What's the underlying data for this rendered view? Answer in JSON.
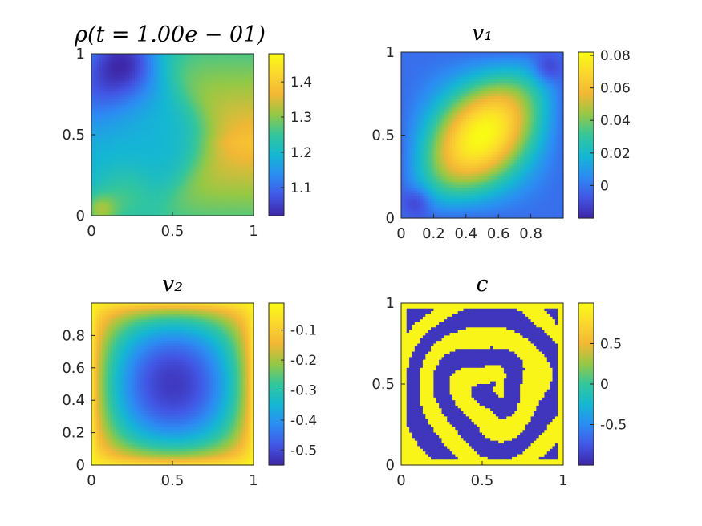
{
  "figure": {
    "colormap_stops": [
      "#3e26a8",
      "#4257e5",
      "#2c8cf3",
      "#14b7d3",
      "#34c69b",
      "#95c845",
      "#f3b735",
      "#fbd72f",
      "#f9fb14"
    ]
  },
  "chart_data": [
    {
      "type": "heatmap",
      "title": "ρ(t = 1.00e − 01)",
      "field": "density",
      "xlim": [
        0,
        1
      ],
      "ylim": [
        0,
        1
      ],
      "xticks": [
        0,
        0.5,
        1
      ],
      "xtick_labels": [
        "0",
        "0.5",
        "1"
      ],
      "yticks": [
        0,
        0.5,
        1
      ],
      "ytick_labels": [
        "0",
        "0.5",
        "1"
      ],
      "clim": [
        1.02,
        1.48
      ],
      "colorbar_ticks": [
        1.1,
        1.2,
        1.3,
        1.4
      ],
      "colorbar_labels": [
        "1.1",
        "1.2",
        "1.3",
        "1.4"
      ]
    },
    {
      "type": "heatmap",
      "title": "v₁",
      "field": "velocity_x",
      "xlim": [
        0,
        1
      ],
      "ylim": [
        0,
        1
      ],
      "xticks": [
        0,
        0.2,
        0.4,
        0.6,
        0.8
      ],
      "xtick_labels": [
        "0",
        "0.2",
        "0.4",
        "0.6",
        "0.8"
      ],
      "yticks": [
        0,
        0.5,
        1
      ],
      "ytick_labels": [
        "0",
        "0.5",
        "1"
      ],
      "clim": [
        -0.02,
        0.082
      ],
      "colorbar_ticks": [
        0,
        0.02,
        0.04,
        0.06,
        0.08
      ],
      "colorbar_labels": [
        "0",
        "0.02",
        "0.04",
        "0.06",
        "0.08"
      ]
    },
    {
      "type": "heatmap",
      "title": "v₂",
      "field": "velocity_y",
      "xlim": [
        0,
        1
      ],
      "ylim": [
        0,
        1
      ],
      "xticks": [
        0,
        0.5,
        1
      ],
      "xtick_labels": [
        "0",
        "0.5",
        "1"
      ],
      "yticks": [
        0,
        0.2,
        0.4,
        0.6,
        0.8
      ],
      "ytick_labels": [
        "0",
        "0.2",
        "0.4",
        "0.6",
        "0.8"
      ],
      "clim": [
        -0.55,
        -0.01
      ],
      "colorbar_ticks": [
        -0.5,
        -0.4,
        -0.3,
        -0.2,
        -0.1
      ],
      "colorbar_labels": [
        "-0.5",
        "-0.4",
        "-0.3",
        "-0.2",
        "-0.1"
      ]
    },
    {
      "type": "heatmap",
      "title": "c",
      "field": "phase_concentration",
      "xlim": [
        0,
        1
      ],
      "ylim": [
        0,
        1
      ],
      "xticks": [
        0,
        0.5,
        1
      ],
      "xtick_labels": [
        "0",
        "0.5",
        "1"
      ],
      "yticks": [
        0,
        0.5,
        1
      ],
      "ytick_labels": [
        "0",
        "0.5",
        "1"
      ],
      "clim": [
        -1,
        1
      ],
      "colorbar_ticks": [
        -0.5,
        0,
        0.5
      ],
      "colorbar_labels": [
        "-0.5",
        "0",
        "0.5"
      ]
    }
  ]
}
